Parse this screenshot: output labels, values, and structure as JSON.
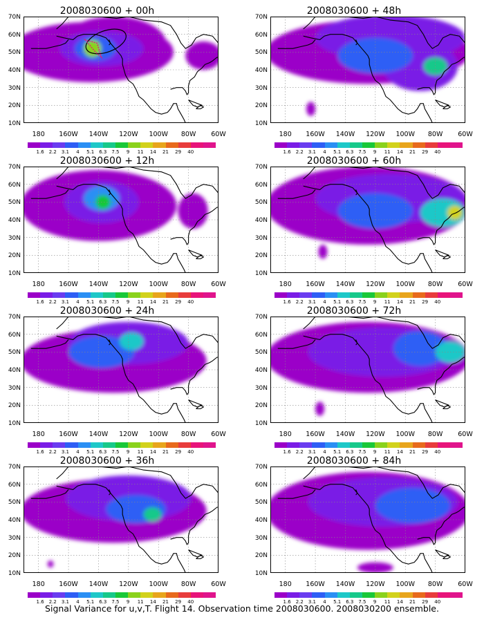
{
  "color_scale": {
    "colors": [
      "#9b00c8",
      "#7a1de6",
      "#6a3cf0",
      "#2e5ef5",
      "#2a8ff4",
      "#1ec8c8",
      "#17c98a",
      "#19c838",
      "#8ad21c",
      "#d2d21c",
      "#e8a51c",
      "#e86a1c",
      "#e83c3c",
      "#e8147a",
      "#e0148c"
    ],
    "labels": [
      "1.6",
      "2.2",
      "3.1",
      "4",
      "5.1",
      "6.3",
      "7.5",
      "9",
      "11",
      "14",
      "21",
      "29",
      "40"
    ]
  },
  "axes": {
    "y_ticks": [
      "70N",
      "60N",
      "50N",
      "40N",
      "30N",
      "20N",
      "10N"
    ],
    "x_ticks": [
      "180",
      "160W",
      "140W",
      "120W",
      "100W",
      "80W",
      "60W"
    ],
    "lon_range": [
      170,
      300
    ],
    "lat_range": [
      10,
      70
    ]
  },
  "panels": [
    {
      "title": "2008030600 + 00h",
      "lead_hours": 0,
      "blobs": [
        {
          "lon": 215,
          "lat": 50,
          "rx": 55,
          "ry": 17,
          "level": 0
        },
        {
          "lon": 230,
          "lat": 55,
          "rx": 35,
          "ry": 15,
          "level": 0
        },
        {
          "lon": 290,
          "lat": 48,
          "rx": 12,
          "ry": 8,
          "level": 0
        },
        {
          "lon": 222,
          "lat": 52,
          "rx": 28,
          "ry": 10,
          "level": 1
        },
        {
          "lon": 218,
          "lat": 52,
          "rx": 14,
          "ry": 7,
          "level": 3
        },
        {
          "lon": 216,
          "lat": 52,
          "rx": 6,
          "ry": 5,
          "level": 8
        }
      ],
      "ellipse": {
        "lon": 225,
        "lat": 56,
        "rx": 14,
        "ry": 6
      }
    },
    {
      "title": "2008030600 + 48h",
      "lead_hours": 48,
      "blobs": [
        {
          "lon": 235,
          "lat": 50,
          "rx": 68,
          "ry": 18,
          "level": 0
        },
        {
          "lon": 250,
          "lat": 58,
          "rx": 50,
          "ry": 13,
          "level": 1
        },
        {
          "lon": 270,
          "lat": 42,
          "rx": 25,
          "ry": 14,
          "level": 1
        },
        {
          "lon": 240,
          "lat": 48,
          "rx": 25,
          "ry": 10,
          "level": 3
        },
        {
          "lon": 280,
          "lat": 42,
          "rx": 8,
          "ry": 5,
          "level": 6
        },
        {
          "lon": 197,
          "lat": 18,
          "rx": 3,
          "ry": 4,
          "level": 0
        }
      ]
    },
    {
      "title": "2008030600 + 12h",
      "lead_hours": 12,
      "blobs": [
        {
          "lon": 220,
          "lat": 48,
          "rx": 52,
          "ry": 20,
          "level": 0
        },
        {
          "lon": 283,
          "lat": 45,
          "rx": 10,
          "ry": 10,
          "level": 0
        },
        {
          "lon": 222,
          "lat": 50,
          "rx": 25,
          "ry": 12,
          "level": 1
        },
        {
          "lon": 222,
          "lat": 52,
          "rx": 12,
          "ry": 7,
          "level": 4
        },
        {
          "lon": 223,
          "lat": 50,
          "rx": 5,
          "ry": 4,
          "level": 7
        }
      ]
    },
    {
      "title": "2008030600 + 60h",
      "lead_hours": 60,
      "blobs": [
        {
          "lon": 235,
          "lat": 48,
          "rx": 68,
          "ry": 22,
          "level": 0
        },
        {
          "lon": 250,
          "lat": 52,
          "rx": 50,
          "ry": 14,
          "level": 1
        },
        {
          "lon": 240,
          "lat": 45,
          "rx": 25,
          "ry": 10,
          "level": 3
        },
        {
          "lon": 285,
          "lat": 44,
          "rx": 15,
          "ry": 8,
          "level": 5
        },
        {
          "lon": 293,
          "lat": 44,
          "rx": 5,
          "ry": 4,
          "level": 9
        },
        {
          "lon": 205,
          "lat": 22,
          "rx": 3,
          "ry": 4,
          "level": 0
        }
      ]
    },
    {
      "title": "2008030600 + 24h",
      "lead_hours": 24,
      "blobs": [
        {
          "lon": 230,
          "lat": 45,
          "rx": 62,
          "ry": 18,
          "level": 0
        },
        {
          "lon": 240,
          "lat": 55,
          "rx": 40,
          "ry": 12,
          "level": 1
        },
        {
          "lon": 222,
          "lat": 50,
          "rx": 22,
          "ry": 9,
          "level": 3
        },
        {
          "lon": 242,
          "lat": 56,
          "rx": 8,
          "ry": 5,
          "level": 5
        }
      ]
    },
    {
      "title": "2008030600 + 72h",
      "lead_hours": 72,
      "blobs": [
        {
          "lon": 235,
          "lat": 47,
          "rx": 68,
          "ry": 20,
          "level": 0
        },
        {
          "lon": 245,
          "lat": 50,
          "rx": 50,
          "ry": 14,
          "level": 1
        },
        {
          "lon": 270,
          "lat": 52,
          "rx": 18,
          "ry": 10,
          "level": 3
        },
        {
          "lon": 290,
          "lat": 50,
          "rx": 10,
          "ry": 6,
          "level": 5
        },
        {
          "lon": 203,
          "lat": 18,
          "rx": 3,
          "ry": 4,
          "level": 0
        }
      ]
    },
    {
      "title": "2008030600 + 36h",
      "lead_hours": 36,
      "blobs": [
        {
          "lon": 230,
          "lat": 45,
          "rx": 62,
          "ry": 18,
          "level": 0
        },
        {
          "lon": 240,
          "lat": 52,
          "rx": 42,
          "ry": 13,
          "level": 1
        },
        {
          "lon": 245,
          "lat": 46,
          "rx": 20,
          "ry": 8,
          "level": 3
        },
        {
          "lon": 256,
          "lat": 43,
          "rx": 6,
          "ry": 4,
          "level": 6
        },
        {
          "lon": 188,
          "lat": 15,
          "rx": 2,
          "ry": 2,
          "level": 0
        }
      ]
    },
    {
      "title": "2008030600 + 84h",
      "lead_hours": 84,
      "blobs": [
        {
          "lon": 235,
          "lat": 45,
          "rx": 68,
          "ry": 22,
          "level": 0
        },
        {
          "lon": 245,
          "lat": 50,
          "rx": 50,
          "ry": 14,
          "level": 1
        },
        {
          "lon": 265,
          "lat": 48,
          "rx": 25,
          "ry": 10,
          "level": 3
        },
        {
          "lon": 240,
          "lat": 13,
          "rx": 12,
          "ry": 3,
          "level": 0
        }
      ]
    }
  ],
  "footer": "Signal Variance for u,v,T. Flight 14. Observation time 2008030600. 2008030200 ensemble."
}
